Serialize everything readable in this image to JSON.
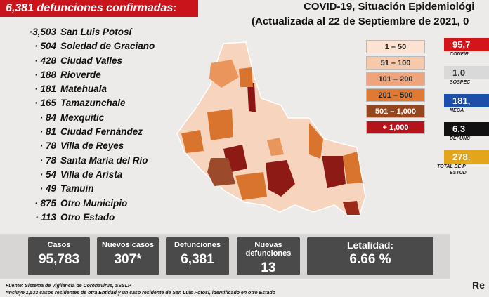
{
  "header": {
    "headline": "6,381 defunciones confirmadas:",
    "title": "COVID-19, Situación Epidemiológi",
    "subtitle": "(Actualizada al 22 de Septiembre de 2021, 0"
  },
  "municipalities": [
    {
      "count": "·3,503",
      "name": "San Luis Potosí"
    },
    {
      "count": "· 504",
      "name": "Soledad de Graciano"
    },
    {
      "count": "· 428",
      "name": "Ciudad Valles"
    },
    {
      "count": "· 188",
      "name": "Rioverde"
    },
    {
      "count": "· 181",
      "name": "Matehuala"
    },
    {
      "count": "· 165",
      "name": "Tamazunchale"
    },
    {
      "count": "· 84",
      "name": "Mexquitic"
    },
    {
      "count": "· 81",
      "name": "Ciudad Fernández"
    },
    {
      "count": "· 78",
      "name": "Villa de Reyes"
    },
    {
      "count": "· 78",
      "name": "Santa María del Río"
    },
    {
      "count": "· 54",
      "name": "Villa de Arista"
    },
    {
      "count": "· 49",
      "name": "Tamuin"
    },
    {
      "count": "· 875",
      "name": "Otro Municipio"
    },
    {
      "count": "· 113",
      "name": "Otro Estado"
    }
  ],
  "legend": [
    "1 – 50",
    "51 – 100",
    "101 – 200",
    "201 – 500",
    "501 – 1,000",
    "+ 1,000"
  ],
  "side_stats": [
    {
      "value": "95,7",
      "label": "CONFIR"
    },
    {
      "value": "1,0",
      "label": "SOSPEC"
    },
    {
      "value": "181,",
      "label": "NEGA"
    },
    {
      "value": "6,3",
      "label": "DEFUNC"
    },
    {
      "value": "278,",
      "label": "TOTAL DE P",
      "label2": "ESTUD"
    }
  ],
  "summary": [
    {
      "label": "Casos",
      "value": "95,783"
    },
    {
      "label": "Nuevos casos",
      "value": "307*"
    },
    {
      "label": "Defunciones",
      "value": "6,381"
    },
    {
      "label": "Nuevas defunciones",
      "value": "13"
    },
    {
      "label": "Letalidad:",
      "value": "6.66 %"
    }
  ],
  "footer": {
    "source": "Fuente: Sistema de Vigilancia de Coronavirus, SSSLP.",
    "note": "*Incluye 1,533 casos residentes de otra Entidad y un caso residente de San Luis Potosí, identificado en otro Estado",
    "corner": "Re"
  }
}
